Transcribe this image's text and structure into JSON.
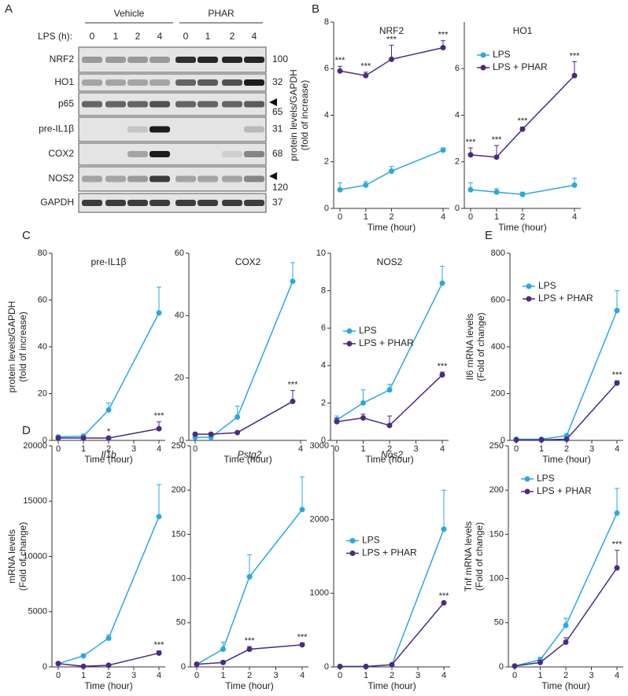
{
  "panels": {
    "a": "A",
    "b": "B",
    "c": "C",
    "d": "D",
    "e": "E"
  },
  "blot": {
    "groups": [
      "Vehicle",
      "PHAR"
    ],
    "lps_label": "LPS (h):",
    "lanes": [
      0,
      1,
      2,
      4,
      0,
      1,
      2,
      4
    ],
    "rows": [
      {
        "label": "NRF2",
        "mw": "100"
      },
      {
        "label": "HO1",
        "mw": "32"
      },
      {
        "label": "p65",
        "mw": "65"
      },
      {
        "label": "pre-IL1β",
        "mw": "31"
      },
      {
        "label": "COX2",
        "mw": "68"
      },
      {
        "label": "NOS2",
        "mw": "120"
      },
      {
        "label": "GAPDH",
        "mw": "37"
      }
    ]
  },
  "chart_data": [
    {
      "type": "line",
      "title": "NRF2",
      "ylabel": [
        "protein levels/GAPDH",
        "(fold of increase)"
      ],
      "xlabel": "Time (hour)",
      "xlim": [
        0,
        4
      ],
      "xticks": [
        0,
        1,
        2,
        4
      ],
      "ylim": [
        0,
        8
      ],
      "yticks": [
        0,
        2,
        4,
        6,
        8
      ],
      "x": [
        0,
        1,
        2,
        4
      ],
      "series": [
        {
          "name": "LPS",
          "color": "#29a9e0",
          "values": [
            0.8,
            1.0,
            1.6,
            2.5
          ],
          "errors": [
            0.3,
            0.15,
            0.2,
            0.1
          ]
        },
        {
          "name": "LPS + PHAR",
          "color": "#4b2a84",
          "values": [
            5.9,
            5.7,
            6.4,
            6.9
          ],
          "errors": [
            0.2,
            0.15,
            0.6,
            0.3
          ],
          "annotations": [
            "***",
            "***",
            "***",
            "***"
          ]
        }
      ]
    },
    {
      "type": "line",
      "title": "HO1",
      "xlabel": "Time (hour)",
      "xlim": [
        0,
        4
      ],
      "xticks": [
        0,
        1,
        2,
        4
      ],
      "ylim": [
        0,
        8
      ],
      "yticks": [
        0,
        2,
        4,
        6
      ],
      "x": [
        0,
        1,
        2,
        4
      ],
      "legend": "upper left",
      "series": [
        {
          "name": "LPS",
          "color": "#29a9e0",
          "values": [
            0.8,
            0.7,
            0.6,
            1.0
          ],
          "errors": [
            0.3,
            0.15,
            0.1,
            0.3
          ]
        },
        {
          "name": "LPS + PHAR",
          "color": "#4b2a84",
          "values": [
            2.3,
            2.2,
            3.4,
            5.7
          ],
          "errors": [
            0.3,
            0.5,
            0.1,
            0.6
          ],
          "annotations": [
            "***",
            "***",
            "***",
            "***"
          ]
        }
      ]
    },
    {
      "type": "line",
      "title": "pre-IL1β",
      "ylabel": [
        "protein levels/GAPDH",
        "(fold of increase)"
      ],
      "xlabel": "Time (hour)",
      "xlim": [
        0,
        4
      ],
      "xticks": [
        0,
        1,
        2,
        3,
        4
      ],
      "ylim": [
        0,
        80
      ],
      "yticks": [
        0,
        20,
        40,
        60,
        80
      ],
      "x": [
        0,
        1,
        2,
        4
      ],
      "series": [
        {
          "name": "LPS",
          "color": "#29a9e0",
          "values": [
            1.5,
            1.8,
            13,
            54.5
          ],
          "errors": [
            0.5,
            0.5,
            3,
            11
          ]
        },
        {
          "name": "LPS + PHAR",
          "color": "#4b2a84",
          "values": [
            1,
            1,
            1,
            5
          ],
          "errors": [
            0.3,
            0.3,
            0.3,
            3
          ],
          "annotations": [
            null,
            null,
            "*",
            "***"
          ]
        }
      ]
    },
    {
      "type": "line",
      "title": "COX2",
      "xlabel": "Time (hour)",
      "xlim": [
        0,
        4
      ],
      "xticks": [
        0,
        4
      ],
      "ylim": [
        0,
        60
      ],
      "yticks": [
        0,
        20,
        40,
        60
      ],
      "x": [
        0,
        0.6,
        1.6,
        3.7
      ],
      "series": [
        {
          "name": "LPS",
          "color": "#29a9e0",
          "values": [
            1,
            1,
            7.5,
            51
          ],
          "errors": [
            0.3,
            0.3,
            3.5,
            6
          ]
        },
        {
          "name": "LPS + PHAR",
          "color": "#4b2a84",
          "values": [
            2,
            2,
            2.5,
            12.5
          ],
          "errors": [
            0.3,
            0.3,
            0.3,
            3.5
          ],
          "annotations": [
            null,
            null,
            null,
            "***"
          ]
        }
      ]
    },
    {
      "type": "line",
      "title": "NOS2",
      "xlabel": "Time (hour)",
      "xlim": [
        0,
        4
      ],
      "xticks": [
        0,
        1,
        2,
        3,
        4
      ],
      "ylim": [
        0,
        10
      ],
      "yticks": [
        0,
        2,
        4,
        6,
        8,
        10
      ],
      "x": [
        0,
        1,
        2,
        4
      ],
      "legend": "middle left",
      "series": [
        {
          "name": "LPS",
          "color": "#29a9e0",
          "values": [
            1.1,
            2,
            2.7,
            8.4
          ],
          "errors": [
            0.2,
            0.7,
            0.3,
            0.9
          ]
        },
        {
          "name": "LPS + PHAR",
          "color": "#4b2a84",
          "values": [
            1,
            1.2,
            0.8,
            3.5
          ],
          "errors": [
            0.2,
            0.2,
            0.5,
            0.15
          ],
          "annotations": [
            null,
            null,
            null,
            "***"
          ]
        }
      ]
    },
    {
      "type": "line",
      "ylabel": [
        "Il6 mRNA levels",
        "(Fold of change)"
      ],
      "xlabel": "Time (hour)",
      "xlim": [
        0,
        4
      ],
      "xticks": [
        0,
        1,
        2,
        3,
        4
      ],
      "ylim": [
        0,
        800
      ],
      "yticks": [
        0,
        200,
        400,
        600,
        800
      ],
      "x": [
        0,
        1,
        2,
        4
      ],
      "legend": "upper left",
      "series": [
        {
          "name": "LPS",
          "color": "#29a9e0",
          "values": [
            5,
            5,
            20,
            555
          ],
          "errors": [
            2,
            2,
            5,
            85
          ]
        },
        {
          "name": "LPS + PHAR",
          "color": "#4b2a84",
          "values": [
            2,
            2,
            5,
            245
          ],
          "errors": [
            1,
            1,
            2,
            10
          ],
          "annotations": [
            null,
            null,
            null,
            "***"
          ]
        }
      ]
    },
    {
      "type": "line",
      "title": "Il1b",
      "title_style": "italic",
      "ylabel": [
        "mRNA levels",
        "(Fold of change)"
      ],
      "xlabel": "Time (hour)",
      "xlim": [
        0,
        4
      ],
      "xticks": [
        0,
        1,
        2,
        3,
        4
      ],
      "ylim": [
        0,
        20000
      ],
      "yticks": [
        0,
        5000,
        10000,
        15000,
        20000
      ],
      "x": [
        0,
        1,
        2,
        4
      ],
      "series": [
        {
          "name": "LPS",
          "color": "#29a9e0",
          "values": [
            300,
            1000,
            2600,
            13600
          ],
          "errors": [
            100,
            150,
            300,
            2900
          ]
        },
        {
          "name": "LPS + PHAR",
          "color": "#4b2a84",
          "values": [
            300,
            50,
            150,
            1250
          ],
          "errors": [
            50,
            20,
            30,
            200
          ],
          "annotations": [
            null,
            null,
            null,
            "***"
          ]
        }
      ]
    },
    {
      "type": "line",
      "title": "Pstg2",
      "title_style": "italic",
      "xlabel": "Time (hour)",
      "xlim": [
        0,
        4
      ],
      "xticks": [
        0,
        1,
        2,
        3,
        4
      ],
      "ylim": [
        0,
        250
      ],
      "yticks": [
        0,
        50,
        100,
        150,
        200,
        250
      ],
      "x": [
        0,
        1,
        2,
        4
      ],
      "series": [
        {
          "name": "LPS",
          "color": "#29a9e0",
          "values": [
            3,
            20,
            102,
            178
          ],
          "errors": [
            1,
            8,
            25,
            37
          ]
        },
        {
          "name": "LPS + PHAR",
          "color": "#4b2a84",
          "values": [
            3,
            5,
            20,
            25
          ],
          "errors": [
            1,
            2,
            3,
            2
          ],
          "annotations": [
            null,
            null,
            "***",
            "***"
          ]
        }
      ]
    },
    {
      "type": "line",
      "title": "Nos2",
      "title_style": "italic",
      "xlabel": "Time (hour)",
      "xlim": [
        0,
        4
      ],
      "xticks": [
        0,
        1,
        2,
        3,
        4
      ],
      "ylim": [
        0,
        3000
      ],
      "yticks": [
        0,
        1000,
        2000,
        3000
      ],
      "x": [
        0,
        1,
        2,
        4
      ],
      "legend": "middle left",
      "series": [
        {
          "name": "LPS",
          "color": "#29a9e0",
          "values": [
            5,
            5,
            30,
            1870
          ],
          "errors": [
            2,
            2,
            5,
            530
          ]
        },
        {
          "name": "LPS + PHAR",
          "color": "#4b2a84",
          "values": [
            5,
            5,
            30,
            870
          ],
          "errors": [
            2,
            2,
            5,
            15
          ],
          "annotations": [
            null,
            null,
            null,
            "***"
          ]
        }
      ]
    },
    {
      "type": "line",
      "ylabel": [
        "Tnf mRNA levels",
        "(Fold of change)"
      ],
      "xlabel": "Time (hour)",
      "xlim": [
        0,
        4
      ],
      "xticks": [
        0,
        1,
        2,
        3,
        4
      ],
      "ylim": [
        0,
        250
      ],
      "yticks": [
        0,
        50,
        100,
        150,
        200,
        250
      ],
      "x": [
        0,
        1,
        2,
        4
      ],
      "legend": "upper left",
      "series": [
        {
          "name": "LPS",
          "color": "#29a9e0",
          "values": [
            1,
            8,
            47,
            174
          ],
          "errors": [
            0.5,
            3,
            8,
            28
          ]
        },
        {
          "name": "LPS + PHAR",
          "color": "#4b2a84",
          "values": [
            1,
            5,
            28,
            112
          ],
          "errors": [
            0.5,
            2,
            5,
            20
          ],
          "annotations": [
            null,
            null,
            null,
            "***"
          ]
        }
      ]
    }
  ]
}
